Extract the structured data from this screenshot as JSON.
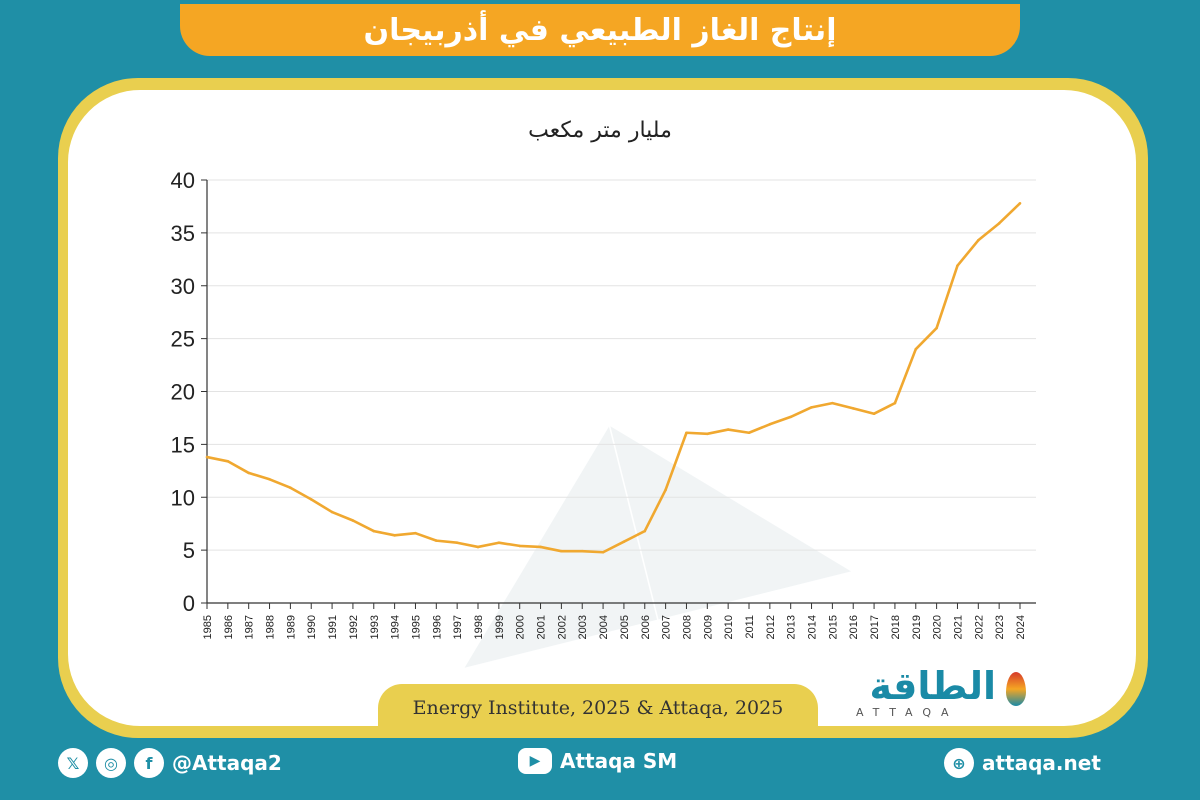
{
  "title": "إنتاج الغاز الطبيعي في أذربيجان",
  "unit_label": "مليار متر مكعب",
  "source": "Energy Institute, 2025 & Attaqa, 2025",
  "logo": {
    "arabic": "الطاقة",
    "latin": "ATTAQA"
  },
  "footer": {
    "social_handle": "@Attaqa2",
    "youtube": "Attaqa SM",
    "website": "attaqa.net"
  },
  "icons": [
    "x-icon",
    "instagram-icon",
    "facebook-icon",
    "youtube-icon",
    "globe-icon"
  ],
  "colors": {
    "background": "#1f8fa6",
    "accent": "#f5a623",
    "line": "#f0a830",
    "frame": "#e9cf4f"
  },
  "chart_data": {
    "type": "line",
    "title": "إنتاج الغاز الطبيعي في أذربيجان",
    "ylabel": "مليار متر مكعب",
    "xlabel": "",
    "ylim": [
      0,
      40
    ],
    "yticks": [
      0,
      5,
      10,
      15,
      20,
      25,
      30,
      35,
      40
    ],
    "grid": true,
    "categories": [
      "1985",
      "1986",
      "1987",
      "1988",
      "1989",
      "1990",
      "1991",
      "1992",
      "1993",
      "1994",
      "1995",
      "1996",
      "1997",
      "1998",
      "1999",
      "2000",
      "2001",
      "2002",
      "2003",
      "2004",
      "2005",
      "2006",
      "2007",
      "2008",
      "2009",
      "2010",
      "2011",
      "2012",
      "2013",
      "2014",
      "2015",
      "2016",
      "2017",
      "2018",
      "2019",
      "2020",
      "2021",
      "2022",
      "2023",
      "2024"
    ],
    "series": [
      {
        "values": [
          13.8,
          13.4,
          12.3,
          11.7,
          10.9,
          9.8,
          8.6,
          7.8,
          6.8,
          6.4,
          6.6,
          5.9,
          5.7,
          5.3,
          5.7,
          5.4,
          5.3,
          4.9,
          4.9,
          4.8,
          5.8,
          6.8,
          10.7,
          16.1,
          16.0,
          16.4,
          16.1,
          16.9,
          17.6,
          18.5,
          18.9,
          18.4,
          17.9,
          18.9,
          24.0,
          26.0,
          31.9,
          34.3,
          35.9,
          37.8
        ]
      }
    ]
  }
}
